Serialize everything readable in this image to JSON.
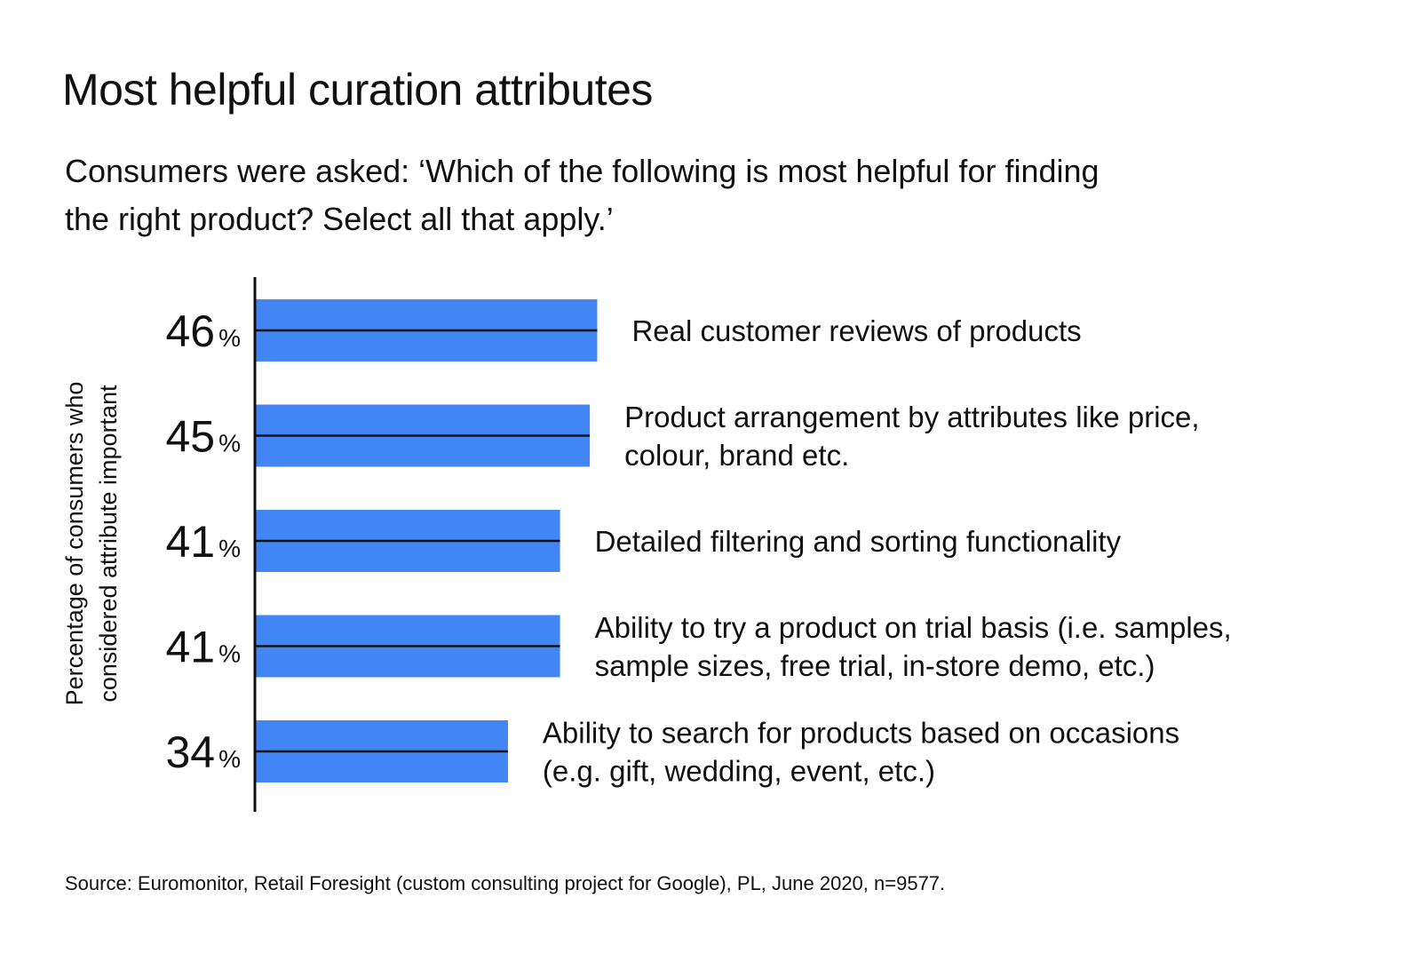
{
  "title": "Most helpful curation attributes",
  "subtitle": "Consumers were asked: ‘Which of the following is most helpful for finding the right product? Select all that apply.’",
  "source": "Source: Euromonitor, Retail Foresight (custom consulting project for Google), PL, June 2020, n=9577.",
  "colors": {
    "bar": "#4285F4",
    "axis": "#111111"
  },
  "chart_data": {
    "type": "bar",
    "orientation": "horizontal",
    "ylabel": "Percentage of consumers who considered attribute important",
    "unit": "%",
    "xlim": [
      0,
      100
    ],
    "grid": false,
    "categories": [
      [
        "Real customer reviews of products"
      ],
      [
        "Product arrangement by attributes like price,",
        "colour, brand etc."
      ],
      [
        "Detailed filtering and sorting functionality"
      ],
      [
        "Ability to try a product on trial basis (i.e. samples,",
        "sample sizes, free trial, in-store demo, etc.)"
      ],
      [
        "Ability to search for products based on occasions",
        "(e.g. gift, wedding, event, etc.)"
      ]
    ],
    "values": [
      46,
      45,
      41,
      41,
      34
    ]
  }
}
